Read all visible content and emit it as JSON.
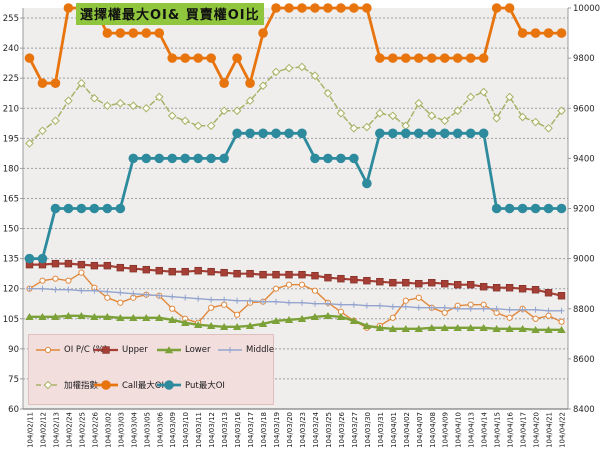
{
  "title": {
    "text": "選擇權最大OI& 買賣權OI比",
    "bg": "#8FC63E"
  },
  "chart_data": {
    "type": "line",
    "title": "選擇權最大OI& 買賣權OI比",
    "categories": [
      "104/02/11",
      "104/02/12",
      "104/02/13",
      "104/02/24",
      "104/02/25",
      "104/02/26",
      "104/03/02",
      "104/03/03",
      "104/03/04",
      "104/03/05",
      "104/03/06",
      "104/03/09",
      "104/03/10",
      "104/03/11",
      "104/03/12",
      "104/03/13",
      "104/03/16",
      "104/03/17",
      "104/03/18",
      "104/03/19",
      "104/03/20",
      "104/03/23",
      "104/03/24",
      "104/03/25",
      "104/03/26",
      "104/03/27",
      "104/03/30",
      "104/03/31",
      "104/04/01",
      "104/04/02",
      "104/04/07",
      "104/04/08",
      "104/04/09",
      "104/04/10",
      "104/04/13",
      "104/04/14",
      "104/04/15",
      "104/04/16",
      "104/04/17",
      "104/04/20",
      "104/04/21",
      "104/04/22"
    ],
    "left_axis": {
      "min": 60,
      "max": 260,
      "ticks": [
        255,
        240,
        225,
        210,
        195,
        180,
        165,
        150,
        135,
        120,
        105,
        90,
        75,
        60
      ]
    },
    "right_axis": {
      "min": 8400,
      "max": 10000,
      "ticks": [
        10000,
        9800,
        9600,
        9400,
        9200,
        9000,
        8800,
        8600,
        8400
      ]
    },
    "grid": "dashed-horizontal",
    "legend_position": "bottom-left",
    "legend_bg": "#F3DEDE",
    "series": [
      {
        "name": "OI P/C (%)",
        "axis": "left",
        "color": "#E0883C",
        "marker": "circle-open",
        "dash": "",
        "width": 1.4,
        "values": [
          120,
          124,
          125,
          124,
          128,
          120.5,
          115.5,
          113,
          115.5,
          117,
          116.5,
          110,
          105,
          103,
          110.5,
          112,
          107,
          113,
          113.5,
          120,
          122,
          122,
          119,
          113,
          108.5,
          104,
          100.5,
          101.5,
          105.5,
          114,
          115.5,
          110.5,
          108,
          111.5,
          112,
          112,
          108,
          105.5,
          110,
          105,
          106.5,
          103.5
        ]
      },
      {
        "name": "Upper",
        "axis": "left",
        "color": "#A53F35",
        "marker": "square",
        "dash": "",
        "width": 2.2,
        "values": [
          132,
          132,
          132.5,
          132.5,
          132,
          131.5,
          131.5,
          130.5,
          130,
          129.5,
          129,
          128.5,
          128.5,
          129,
          128.5,
          128,
          127.5,
          127.5,
          127,
          127,
          127,
          127,
          126.5,
          125.5,
          125,
          124.5,
          124,
          123.5,
          123,
          123,
          122.5,
          123,
          122.5,
          122,
          122,
          121,
          120.5,
          120.5,
          120,
          119.5,
          118,
          116.5
        ]
      },
      {
        "name": "Lower",
        "axis": "left",
        "color": "#7BA138",
        "marker": "triangle",
        "dash": "",
        "width": 2.4,
        "values": [
          106,
          106,
          106,
          106.5,
          106.5,
          106,
          106,
          105.5,
          105.5,
          105.5,
          105.5,
          104.5,
          103,
          102,
          101.5,
          101,
          101,
          101.5,
          102.5,
          104,
          104.5,
          105,
          106,
          106.5,
          106,
          104,
          101.5,
          100.5,
          100,
          100,
          100,
          100.5,
          100.5,
          100.5,
          100.5,
          100.5,
          100,
          100,
          100,
          99.5,
          99.5,
          99.5
        ]
      },
      {
        "name": "Middle",
        "axis": "left",
        "color": "#93A4CE",
        "marker": "plus",
        "dash": "",
        "width": 1.3,
        "values": [
          120,
          120,
          119.5,
          119.5,
          119,
          119,
          118.5,
          118,
          117.5,
          117,
          116.5,
          116,
          115.5,
          115,
          114.5,
          114.5,
          114,
          114,
          113.5,
          113.5,
          113,
          113,
          112.5,
          112.5,
          112,
          112,
          111.5,
          111.5,
          111,
          111,
          110.5,
          110.5,
          110.5,
          110,
          110,
          110,
          110,
          109.5,
          109.5,
          109.5,
          109,
          109
        ]
      },
      {
        "name": "加權指數",
        "axis": "right",
        "color": "#A9B268",
        "marker": "diamond-open",
        "dash": "5,3",
        "width": 1.5,
        "values": [
          9460,
          9510,
          9550,
          9630,
          9700,
          9640,
          9610,
          9620,
          9610,
          9600,
          9645,
          9570,
          9550,
          9530,
          9530,
          9590,
          9590,
          9630,
          9690,
          9745,
          9760,
          9765,
          9730,
          9660,
          9580,
          9520,
          9525,
          9580,
          9570,
          9530,
          9620,
          9570,
          9550,
          9590,
          9645,
          9665,
          9560,
          9645,
          9565,
          9545,
          9520,
          9590
        ]
      },
      {
        "name": "Call最大OI",
        "axis": "right",
        "color": "#E8740E",
        "marker": "circle",
        "dash": "",
        "width": 2.8,
        "values": [
          9800,
          9700,
          9700,
          10000,
          10000,
          10000,
          9900,
          9900,
          9900,
          9900,
          9900,
          9800,
          9800,
          9800,
          9800,
          9700,
          9800,
          9700,
          9900,
          10000,
          10000,
          10000,
          10000,
          10000,
          10000,
          10000,
          10000,
          9800,
          9800,
          9800,
          9800,
          9800,
          9800,
          9800,
          9800,
          9800,
          10000,
          10000,
          9900,
          9900,
          9900,
          9900
        ]
      },
      {
        "name": "Put最大OI",
        "axis": "right",
        "color": "#2E8B9E",
        "marker": "circle",
        "dash": "",
        "width": 2.8,
        "values": [
          9000,
          9000,
          9200,
          9200,
          9200,
          9200,
          9200,
          9200,
          9400,
          9400,
          9400,
          9400,
          9400,
          9400,
          9400,
          9400,
          9500,
          9500,
          9500,
          9500,
          9500,
          9500,
          9400,
          9400,
          9400,
          9400,
          9300,
          9500,
          9500,
          9500,
          9500,
          9500,
          9500,
          9500,
          9500,
          9500,
          9200,
          9200,
          9200,
          9200,
          9200,
          9200
        ]
      }
    ],
    "legend_rows": [
      [
        0,
        1,
        2,
        3
      ],
      [
        4,
        5,
        6
      ]
    ]
  }
}
